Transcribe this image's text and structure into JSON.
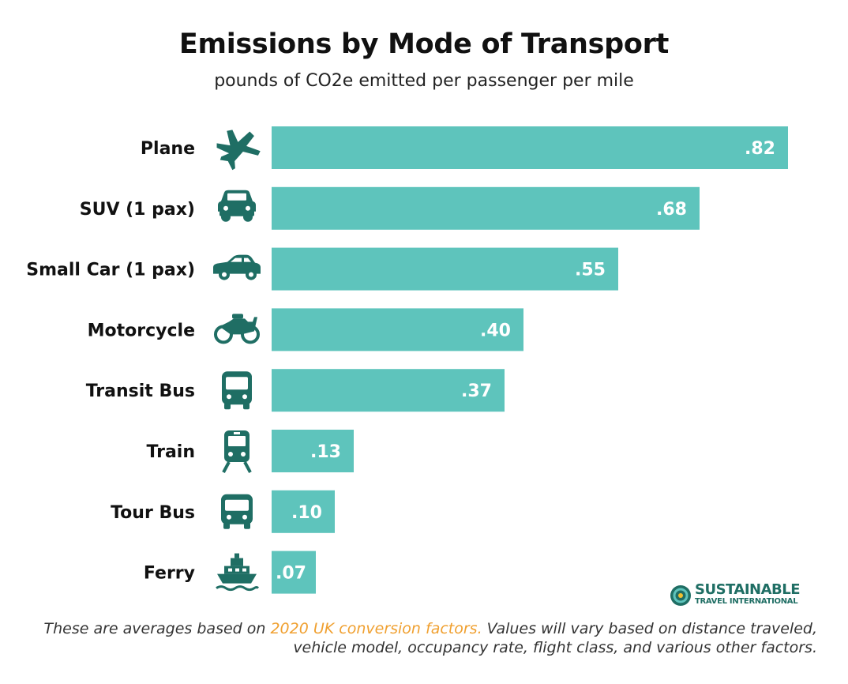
{
  "header": {
    "title": "Emissions by Mode of Transport",
    "subtitle": "pounds of CO2e emitted per passenger per mile"
  },
  "chart_data": {
    "type": "bar",
    "orientation": "horizontal",
    "title": "Emissions by Mode of Transport",
    "subtitle": "pounds of CO2e emitted per passenger per mile",
    "categories": [
      "Plane",
      "SUV (1 pax)",
      "Small Car (1 pax)",
      "Motorcycle",
      "Transit Bus",
      "Train",
      "Tour Bus",
      "Ferry"
    ],
    "values": [
      0.82,
      0.68,
      0.55,
      0.4,
      0.37,
      0.13,
      0.1,
      0.07
    ],
    "labels": [
      ".82",
      ".68",
      ".55",
      ".40",
      ".37",
      ".13",
      ".10",
      ".07"
    ],
    "icons": [
      "plane-icon",
      "suv-icon",
      "small-car-icon",
      "motorcycle-icon",
      "transit-bus-icon",
      "train-icon",
      "tour-bus-icon",
      "ferry-icon"
    ],
    "xlim": [
      0,
      0.82
    ],
    "grid": false,
    "legend": "none",
    "bar_color": "#5ec4bc",
    "icon_color": "#1f6e64"
  },
  "logo": {
    "line1": "SUSTAINABLE",
    "line2": "TRAVEL INTERNATIONAL"
  },
  "footnote": {
    "before": "These are averages based on ",
    "link": "2020 UK conversion factors.",
    "after": " Values will vary based on distance traveled, vehicle model, occupancy rate, flight class, and various other factors."
  },
  "colors": {
    "accent": "#5ec4bc",
    "icon": "#1f6e64",
    "link": "#f0a030"
  }
}
